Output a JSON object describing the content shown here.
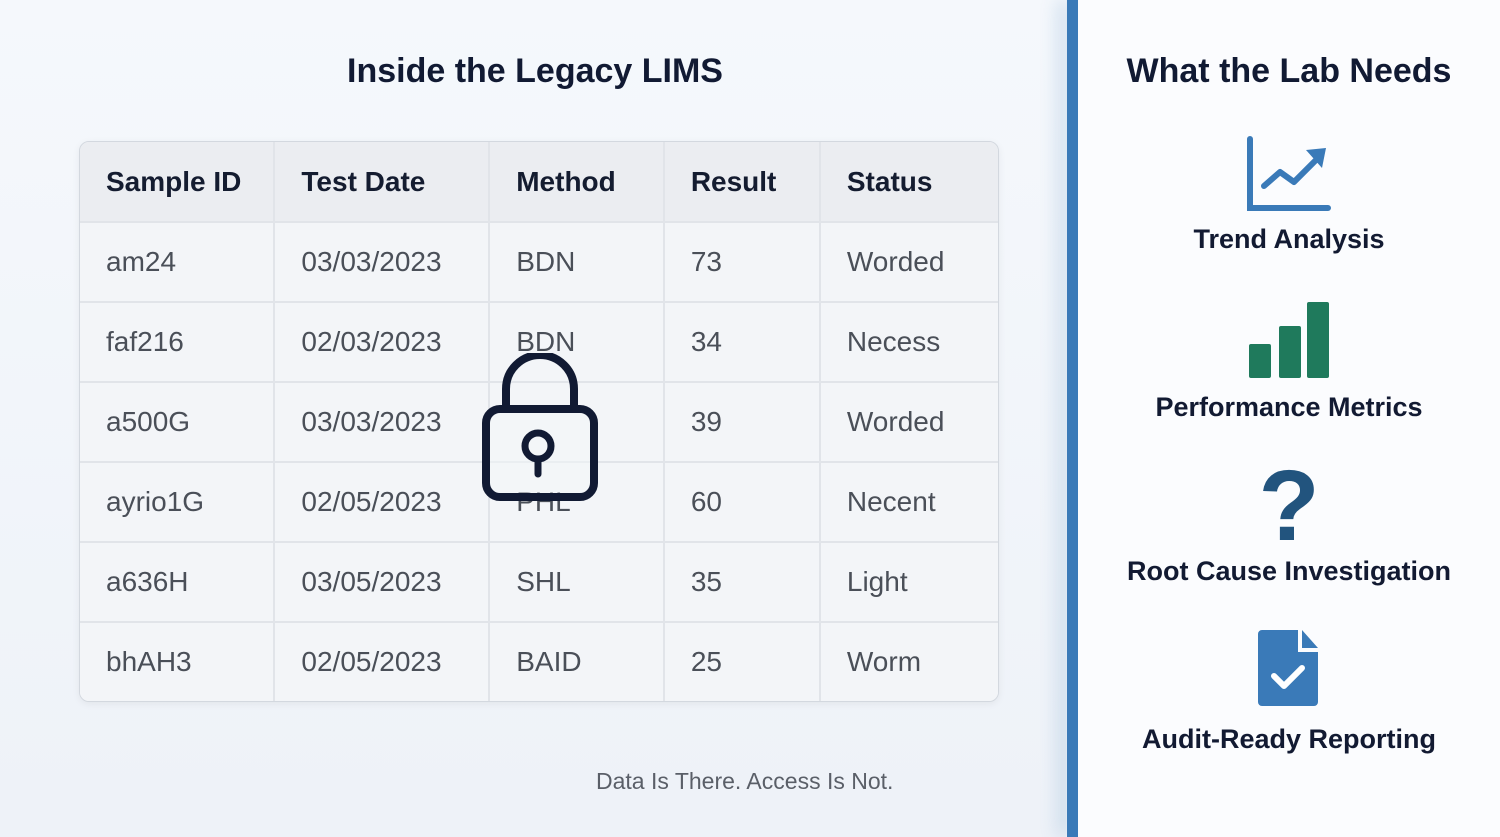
{
  "left_panel": {
    "title": "Inside the Legacy LIMS",
    "table": {
      "columns": [
        "Sample ID",
        "Test Date",
        "Method",
        "Result",
        "Status"
      ],
      "rows": [
        [
          "am24",
          "03/03/2023",
          "BDN",
          "73",
          "Worded"
        ],
        [
          "faf216",
          "02/03/2023",
          "BDN",
          "34",
          "Necess"
        ],
        [
          "a500G",
          "03/03/2023",
          "",
          "39",
          "Worded"
        ],
        [
          "ayrio1G",
          "02/05/2023",
          "PHL",
          "60",
          "Necent"
        ],
        [
          "a636H",
          "03/05/2023",
          "SHL",
          "35",
          "Light"
        ],
        [
          "bhAH3",
          "02/05/2023",
          "BAID",
          "25",
          "Worm"
        ]
      ]
    },
    "overlay_icon": "lock-icon",
    "footer": "Data Is There. Access Is Not."
  },
  "right_panel": {
    "title": "What the Lab Needs",
    "items": [
      {
        "label": "Trend Analysis",
        "icon": "trend-chart-icon",
        "color": "#3a7ab8"
      },
      {
        "label": "Performance Metrics",
        "icon": "bar-chart-icon",
        "color": "#1f7a5c"
      },
      {
        "label": "Root Cause Investigation",
        "icon": "question-mark-icon",
        "color": "#22547e"
      },
      {
        "label": "Audit-Ready Reporting",
        "icon": "document-check-icon",
        "color": "#3a7ab8"
      }
    ]
  },
  "colors": {
    "accent": "#3a7ab8",
    "text": "#111a33"
  }
}
